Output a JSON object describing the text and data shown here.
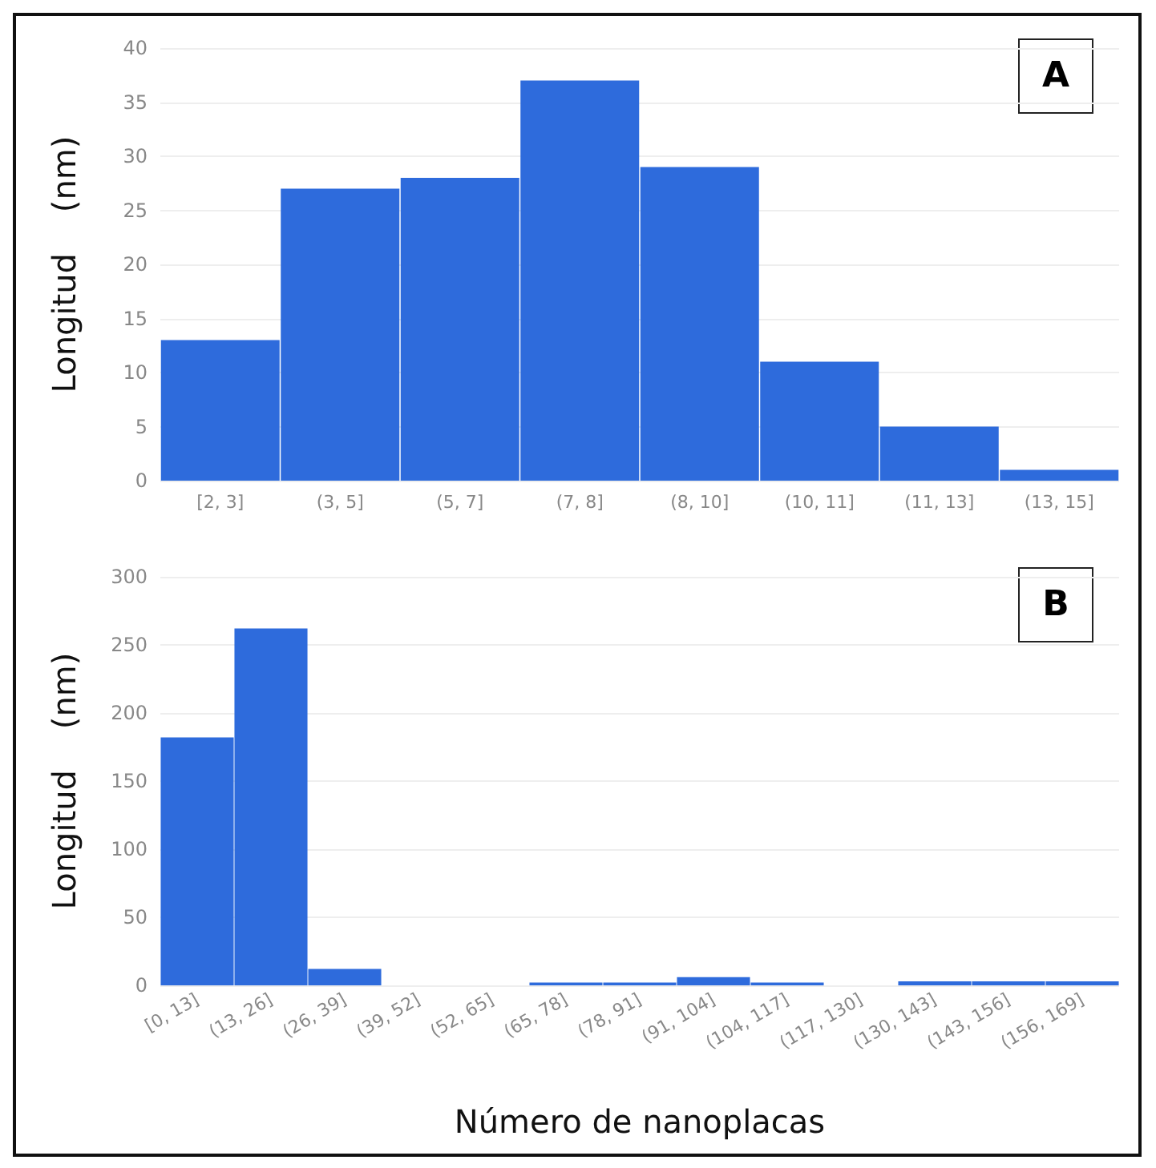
{
  "chart_data": [
    {
      "type": "bar",
      "annotations": [
        "A"
      ],
      "ylabel": "Longitud    (nm)",
      "categories": [
        "[2, 3]",
        "(3, 5]",
        "(5, 7]",
        "(7, 8]",
        "(8, 10]",
        "(10, 11]",
        "(11, 13]",
        "(13, 15]"
      ],
      "values": [
        13,
        27,
        28,
        37,
        29,
        11,
        5,
        1
      ],
      "color": "#2e6bdc",
      "ylim": [
        0,
        40
      ],
      "yticks": [
        0,
        5,
        10,
        15,
        20,
        25,
        30,
        35,
        40
      ],
      "grid": "y"
    },
    {
      "type": "bar",
      "annotations": [
        "B"
      ],
      "ylabel": "Longitud    (nm)",
      "xlabel": "Número de nanoplacas",
      "categories": [
        "[0, 13]",
        "(13, 26]",
        "(26, 39]",
        "(39, 52]",
        "(52, 65]",
        "(65, 78]",
        "(78, 91]",
        "(91, 104]",
        "(104, 117]",
        "(117, 130]",
        "(130, 143]",
        "(143, 156]",
        "(156, 169]"
      ],
      "values": [
        182,
        262,
        12,
        0,
        0,
        2,
        2,
        6,
        2,
        0,
        3,
        3,
        3
      ],
      "color": "#2e6bdc",
      "ylim": [
        0,
        300
      ],
      "yticks": [
        0,
        50,
        100,
        150,
        200,
        250,
        300
      ],
      "grid": "y"
    }
  ]
}
